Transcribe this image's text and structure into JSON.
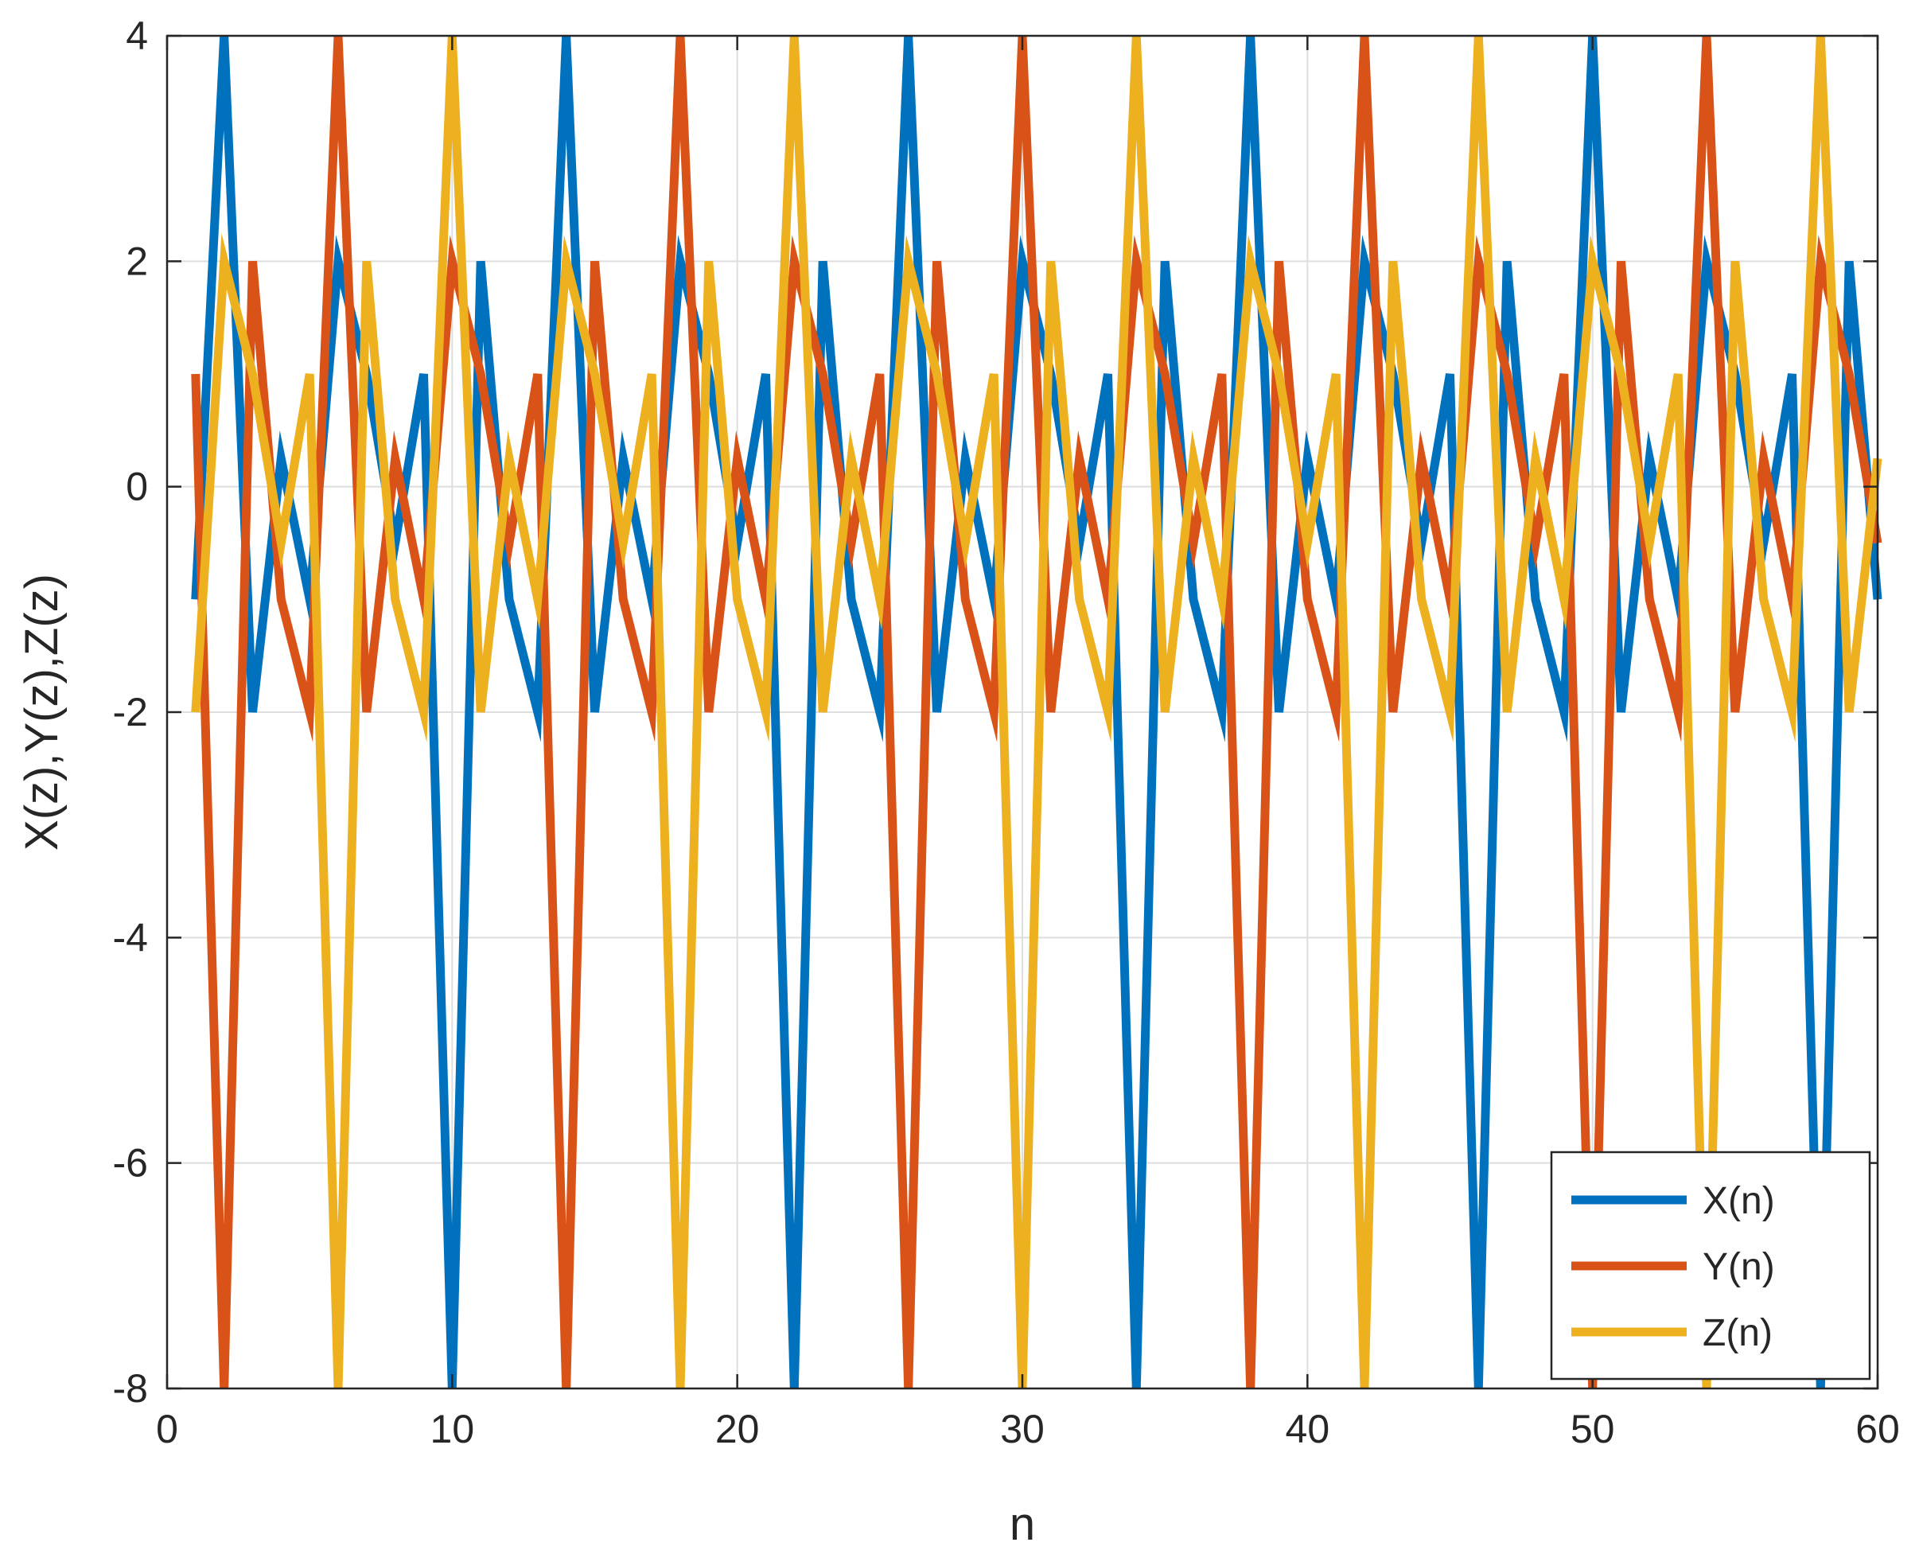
{
  "chart_data": {
    "type": "line",
    "title": "",
    "xlabel": "n",
    "ylabel": "X(z),Y(z),Z(z)",
    "xlim": [
      0,
      60
    ],
    "ylim": [
      -8,
      4
    ],
    "xticks": [
      0,
      10,
      20,
      30,
      40,
      50,
      60
    ],
    "yticks": [
      -8,
      -6,
      -4,
      -2,
      0,
      2,
      4
    ],
    "xtick_labels": [
      "0",
      "10",
      "20",
      "30",
      "40",
      "50",
      "60"
    ],
    "ytick_labels": [
      "-8",
      "-6",
      "-4",
      "-2",
      "0",
      "2",
      "4"
    ],
    "grid": true,
    "legend_position": "bottom-right",
    "x": [
      1,
      2,
      3,
      4,
      5,
      6,
      7,
      8,
      9,
      10,
      11,
      12,
      13,
      14,
      15,
      16,
      17,
      18,
      19,
      20,
      21,
      22,
      23,
      24,
      25,
      26,
      27,
      28,
      29,
      30,
      31,
      32,
      33,
      34,
      35,
      36,
      37,
      38,
      39,
      40,
      41,
      42,
      43,
      44,
      45,
      46,
      47,
      48,
      49,
      50,
      51,
      52,
      53,
      54,
      55,
      56,
      57,
      58,
      59,
      60
    ],
    "series": [
      {
        "name": "X(n)",
        "color": "#0072BD",
        "values": [
          -1,
          4,
          -2,
          0.25,
          -1,
          2,
          1,
          -0.5,
          1,
          -8,
          2,
          -1,
          -2,
          4,
          -2,
          0.25,
          -1,
          2,
          1,
          -0.5,
          1,
          -8,
          2,
          -1,
          -2,
          4,
          -2,
          0.25,
          -1,
          2,
          1,
          -0.5,
          1,
          -8,
          2,
          -1,
          -2,
          4,
          -2,
          0.25,
          -1,
          2,
          1,
          -0.5,
          1,
          -8,
          2,
          -1,
          -2,
          4,
          -2,
          0.25,
          -1,
          2,
          1,
          -0.5,
          1,
          -8,
          2,
          -1
        ]
      },
      {
        "name": "Y(n)",
        "color": "#D95319",
        "values": [
          1,
          -8,
          2,
          -1,
          -2,
          4,
          -2,
          0.25,
          -1,
          2,
          1,
          -0.5,
          1,
          -8,
          2,
          -1,
          -2,
          4,
          -2,
          0.25,
          -1,
          2,
          1,
          -0.5,
          1,
          -8,
          2,
          -1,
          -2,
          4,
          -2,
          0.25,
          -1,
          2,
          1,
          -0.5,
          1,
          -8,
          2,
          -1,
          -2,
          4,
          -2,
          0.25,
          -1,
          2,
          1,
          -0.5,
          1,
          -8,
          2,
          -1,
          -2,
          4,
          -2,
          0.25,
          -1,
          2,
          1,
          -0.5
        ]
      },
      {
        "name": "Z(n)",
        "color": "#EDB120",
        "values": [
          -2,
          2,
          1,
          -0.5,
          1,
          -8,
          2,
          -1,
          -2,
          4,
          -2,
          0.25,
          -1,
          2,
          1,
          -0.5,
          1,
          -8,
          2,
          -1,
          -2,
          4,
          -2,
          0.25,
          -1,
          2,
          1,
          -0.5,
          1,
          -8,
          2,
          -1,
          -2,
          4,
          -2,
          0.25,
          -1,
          2,
          1,
          -0.5,
          1,
          -8,
          2,
          -1,
          -2,
          4,
          -2,
          0.25,
          -1,
          2,
          1,
          -0.5,
          1,
          -8,
          2,
          -1,
          -2,
          4,
          -2,
          0.25
        ]
      }
    ]
  }
}
